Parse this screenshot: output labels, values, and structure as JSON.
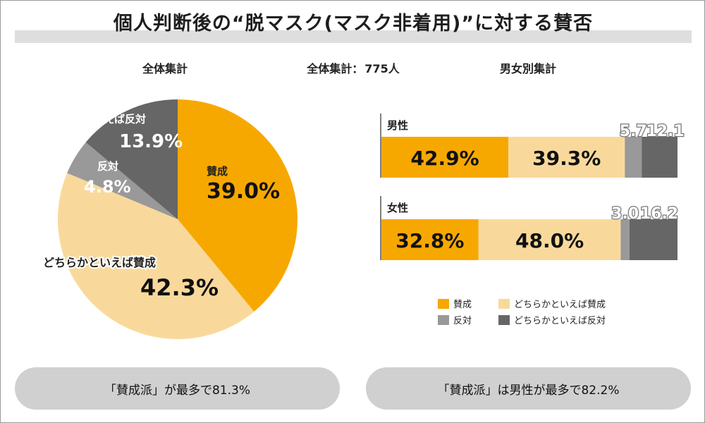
{
  "title": "個人判断後の“脱マスク(マスク非着用)”に対する賛否",
  "headers": {
    "overall": "全体集計",
    "total_label": "全体集計：",
    "total_value": "775人",
    "gender": "男女別集計"
  },
  "colors": {
    "agree": "#f7a800",
    "somewhat_agree": "#f9d99b",
    "oppose": "#999999",
    "somewhat_oppose": "#666666"
  },
  "chart_data": [
    {
      "type": "pie",
      "title": "全体集計",
      "categories": [
        "賛成",
        "どちらかといえば賛成",
        "反対",
        "どちらかといえば反対"
      ],
      "values": [
        39.0,
        42.3,
        4.8,
        13.9
      ],
      "value_labels": [
        "39.0%",
        "42.3%",
        "4.8%",
        "13.9%"
      ]
    },
    {
      "type": "bar",
      "orientation": "horizontal",
      "stacked": true,
      "title": "男女別集計",
      "categories": [
        "男性",
        "女性"
      ],
      "series": [
        {
          "name": "賛成",
          "values": [
            42.9,
            32.8
          ],
          "labels": [
            "42.9%",
            "32.8%"
          ]
        },
        {
          "name": "どちらかといえば賛成",
          "values": [
            39.3,
            48.0
          ],
          "labels": [
            "39.3%",
            "48.0%"
          ]
        },
        {
          "name": "反対",
          "values": [
            5.7,
            3.0
          ],
          "labels": [
            "5.7",
            "3.0"
          ]
        },
        {
          "name": "どちらかといえば反対",
          "values": [
            12.1,
            16.2
          ],
          "labels": [
            "12.1",
            "16.2"
          ]
        }
      ],
      "legend": [
        "賛成",
        "どちらかといえば賛成",
        "反対",
        "どちらかといえば反対"
      ],
      "legend_position": "bottom"
    }
  ],
  "footer": {
    "left": "「賛成派」が最多で81.3%",
    "right": "「賛成派」は男性が最多で82.2%"
  }
}
